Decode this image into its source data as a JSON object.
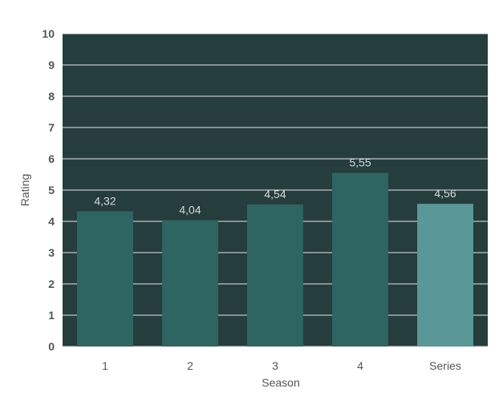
{
  "chart_data": {
    "type": "bar",
    "categories": [
      "1",
      "2",
      "3",
      "4",
      "Series"
    ],
    "values": [
      4.32,
      4.04,
      4.54,
      5.55,
      4.56
    ],
    "data_labels": [
      "4,32",
      "4,04",
      "4,54",
      "5,55",
      "4,56"
    ],
    "xlabel": "Season",
    "ylabel": "Rating",
    "ylim": [
      0,
      10
    ],
    "yticks": [
      "0",
      "1",
      "2",
      "3",
      "4",
      "5",
      "6",
      "7",
      "8",
      "9",
      "10"
    ],
    "grid": true,
    "colors": {
      "plot_background": "#253d3c",
      "bar": "#2e6462",
      "bar_highlight": "#5a9898",
      "gridline": "#e8e8e8",
      "data_label": "#d9d9d9"
    }
  }
}
